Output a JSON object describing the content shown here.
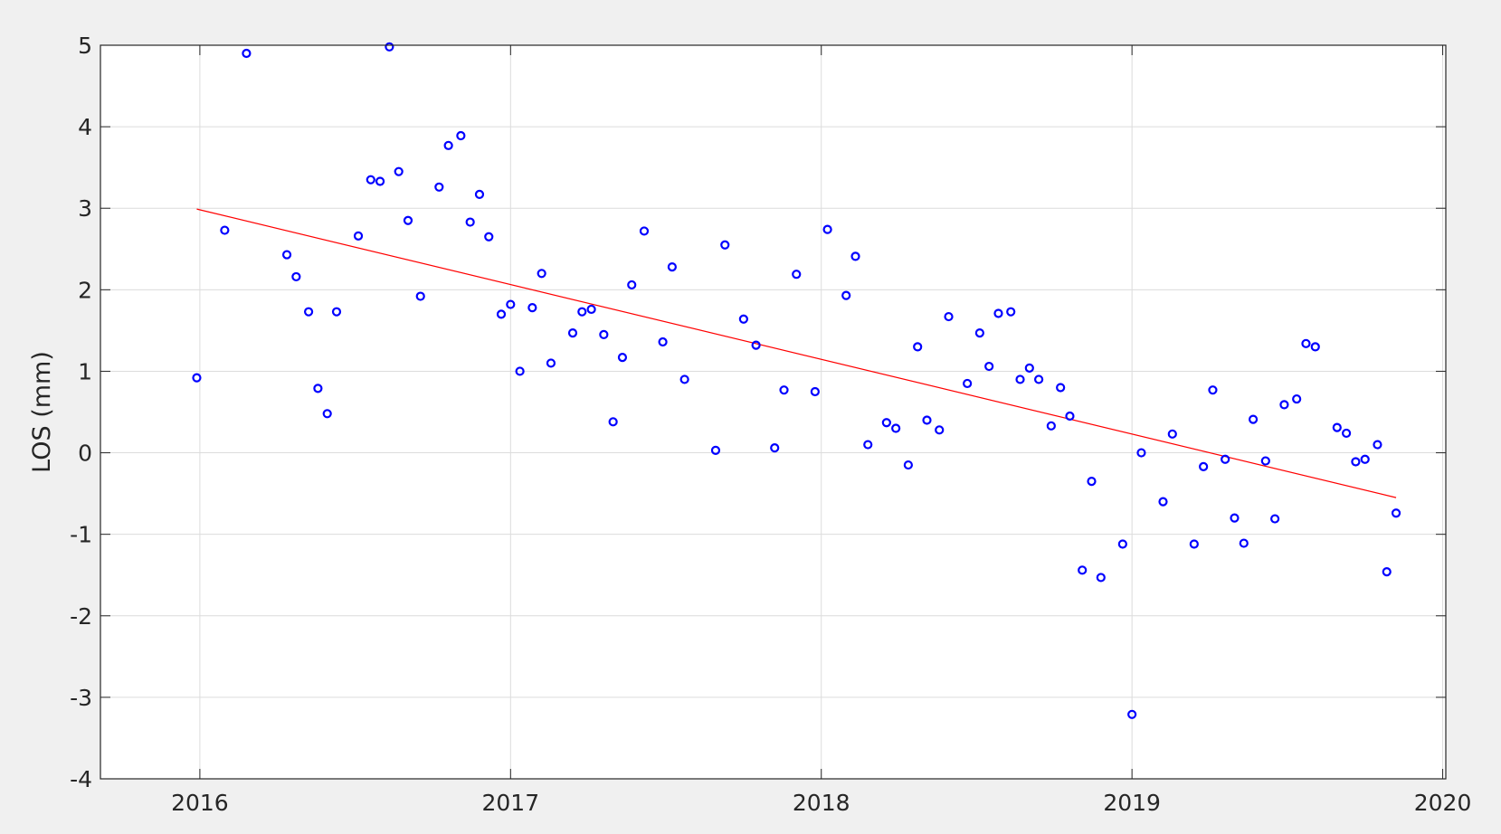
{
  "chart_data": {
    "type": "scatter",
    "title": "",
    "xlabel": "",
    "ylabel": "LOS (mm)",
    "xlim": [
      2015.68,
      2020.01
    ],
    "ylim": [
      -4,
      5
    ],
    "x_ticks": [
      2016,
      2017,
      2018,
      2019,
      2020
    ],
    "x_tick_labels": [
      "2016",
      "2017",
      "2018",
      "2019",
      "2020"
    ],
    "y_ticks": [
      5,
      4,
      3,
      2,
      1,
      0,
      -1,
      -2,
      -3,
      -4
    ],
    "y_tick_labels": [
      "5",
      "4",
      "3",
      "2",
      "1",
      "0",
      "-1",
      "-2",
      "-3",
      "-4"
    ],
    "grid": true,
    "legend": "none",
    "colors": {
      "points": "#0000ff",
      "fit_line": "#ff0000",
      "grid": "#dcdcdc",
      "axes": "#262626",
      "plot_bg": "#ffffff",
      "figure_bg": "#f0f0f0"
    },
    "series": [
      {
        "type": "scatter",
        "marker": "circle-open",
        "x": [
          2015.99,
          2016.08,
          2016.15,
          2016.28,
          2016.31,
          2016.35,
          2016.38,
          2016.41,
          2016.44,
          2016.51,
          2016.55,
          2016.58,
          2016.61,
          2016.64,
          2016.67,
          2016.71,
          2016.77,
          2016.8,
          2016.84,
          2016.87,
          2016.9,
          2016.93,
          2016.97,
          2017.0,
          2017.03,
          2017.07,
          2017.1,
          2017.13,
          2017.2,
          2017.23,
          2017.26,
          2017.3,
          2017.33,
          2017.36,
          2017.39,
          2017.43,
          2017.49,
          2017.52,
          2017.56,
          2017.66,
          2017.69,
          2017.75,
          2017.79,
          2017.85,
          2017.88,
          2017.92,
          2017.98,
          2018.02,
          2018.08,
          2018.11,
          2018.15,
          2018.21,
          2018.24,
          2018.28,
          2018.31,
          2018.34,
          2018.38,
          2018.41,
          2018.47,
          2018.51,
          2018.54,
          2018.57,
          2018.61,
          2018.64,
          2018.67,
          2018.7,
          2018.74,
          2018.77,
          2018.8,
          2018.84,
          2018.87,
          2018.9,
          2018.97,
          2019.0,
          2019.03,
          2019.1,
          2019.13,
          2019.2,
          2019.23,
          2019.26,
          2019.3,
          2019.33,
          2019.36,
          2019.39,
          2019.43,
          2019.46,
          2019.49,
          2019.53,
          2019.56,
          2019.59,
          2019.66,
          2019.69,
          2019.72,
          2019.75,
          2019.79,
          2019.82,
          2019.85
        ],
        "y": [
          0.92,
          2.73,
          4.9,
          2.43,
          2.16,
          1.73,
          0.79,
          0.48,
          1.73,
          2.66,
          3.35,
          3.33,
          4.98,
          3.45,
          2.85,
          1.92,
          3.26,
          3.77,
          3.89,
          2.83,
          3.17,
          2.65,
          1.7,
          1.82,
          1.0,
          1.78,
          2.2,
          1.1,
          1.47,
          1.73,
          1.76,
          1.45,
          0.38,
          1.17,
          2.06,
          2.72,
          1.36,
          2.28,
          0.9,
          0.03,
          2.55,
          1.64,
          1.32,
          0.06,
          0.77,
          2.19,
          0.75,
          2.74,
          1.93,
          2.41,
          0.1,
          0.37,
          0.3,
          -0.15,
          1.3,
          0.4,
          0.28,
          1.67,
          0.85,
          1.47,
          1.06,
          1.71,
          1.73,
          0.9,
          1.04,
          0.9,
          0.33,
          0.8,
          0.45,
          -1.44,
          -0.35,
          -1.53,
          -1.12,
          -3.21,
          0.0,
          -0.6,
          0.23,
          -1.12,
          -0.17,
          0.77,
          -0.08,
          -0.8,
          -1.11,
          0.41,
          -0.1,
          -0.81,
          0.59,
          0.66,
          1.34,
          1.3,
          0.31,
          0.24,
          -0.11,
          -0.08,
          0.1,
          -1.46,
          -0.74
        ]
      },
      {
        "type": "line",
        "x": [
          2015.99,
          2019.85
        ],
        "y": [
          2.99,
          -0.55
        ]
      }
    ]
  }
}
